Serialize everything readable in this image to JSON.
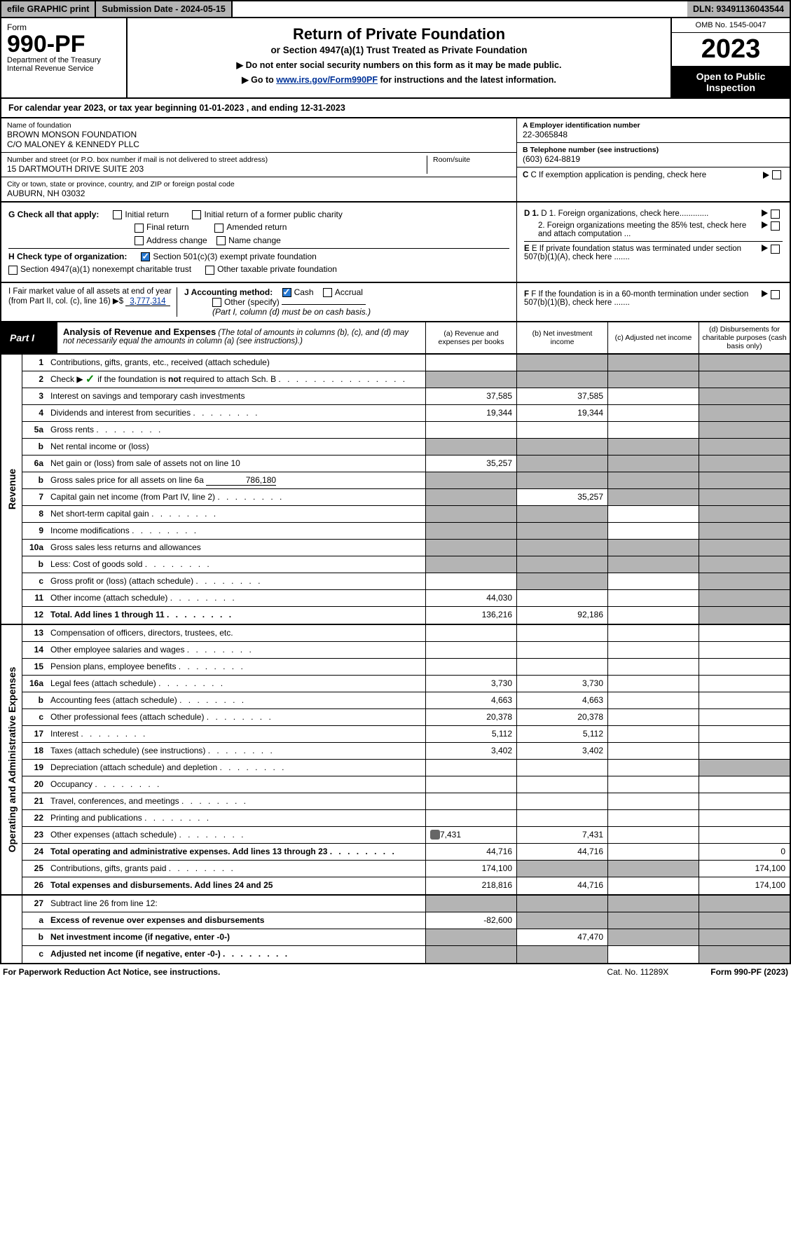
{
  "topbar": {
    "efile": "efile GRAPHIC print",
    "subdate": "Submission Date - 2024-05-15",
    "dln": "DLN: 93491136043544"
  },
  "header": {
    "form": "Form",
    "pf": "990-PF",
    "dept": "Department of the Treasury",
    "irs": "Internal Revenue Service",
    "title": "Return of Private Foundation",
    "subtitle": "or Section 4947(a)(1) Trust Treated as Private Foundation",
    "note1": "▶ Do not enter social security numbers on this form as it may be made public.",
    "note2_pre": "▶ Go to ",
    "note2_link": "www.irs.gov/Form990PF",
    "note2_post": " for instructions and the latest information.",
    "omb": "OMB No. 1545-0047",
    "year": "2023",
    "open": "Open to Public Inspection"
  },
  "calendar": "For calendar year 2023, or tax year beginning 01-01-2023                       , and ending 12-31-2023",
  "entity": {
    "name_lbl": "Name of foundation",
    "name": "BROWN MONSON FOUNDATION\nC/O MALONEY & KENNEDY PLLC",
    "addr_lbl": "Number and street (or P.O. box number if mail is not delivered to street address)",
    "addr": "15 DARTMOUTH DRIVE SUITE 203",
    "room_lbl": "Room/suite",
    "city_lbl": "City or town, state or province, country, and ZIP or foreign postal code",
    "city": "AUBURN, NH  03032",
    "ein_lbl": "A Employer identification number",
    "ein": "22-3065848",
    "tel_lbl": "B Telephone number (see instructions)",
    "tel": "(603) 624-8819",
    "c_lbl": "C If exemption application is pending, check here",
    "d1": "D 1. Foreign organizations, check here.............",
    "d2": "2. Foreign organizations meeting the 85% test, check here and attach computation ...",
    "e_lbl": "E  If private foundation status was terminated under section 507(b)(1)(A), check here .......",
    "f_lbl": "F  If the foundation is in a 60-month termination under section 507(b)(1)(B), check here ......."
  },
  "g": {
    "lbl": "G Check all that apply:",
    "opts": [
      "Initial return",
      "Final return",
      "Address change",
      "Initial return of a former public charity",
      "Amended return",
      "Name change"
    ]
  },
  "h": {
    "lbl": "H Check type of organization:",
    "o1": "Section 501(c)(3) exempt private foundation",
    "o2": "Section 4947(a)(1) nonexempt charitable trust",
    "o3": "Other taxable private foundation"
  },
  "i": {
    "lbl": "I Fair market value of all assets at end of year (from Part II, col. (c), line 16) ▶$",
    "val": "3,777,314"
  },
  "j": {
    "lbl": "J Accounting method:",
    "cash": "Cash",
    "accrual": "Accrual",
    "other": "Other (specify)",
    "note": "(Part I, column (d) must be on cash basis.)"
  },
  "part1": {
    "lbl": "Part I",
    "title": "Analysis of Revenue and Expenses",
    "note": "(The total of amounts in columns (b), (c), and (d) may not necessarily equal the amounts in column (a) (see instructions).)",
    "cols": {
      "a": "(a)  Revenue and expenses per books",
      "b": "(b)  Net investment income",
      "c": "(c)  Adjusted net income",
      "d": "(d)  Disbursements for charitable purposes (cash basis only)"
    }
  },
  "sections": {
    "revenue": "Revenue",
    "opex": "Operating and Administrative Expenses"
  },
  "rows": {
    "1": {
      "n": "1",
      "d": "Contributions, gifts, grants, etc., received (attach schedule)"
    },
    "2": {
      "n": "2",
      "d": "Check ▶        if the foundation is not required to attach Sch. B",
      "dots": true,
      "chk": true
    },
    "3": {
      "n": "3",
      "d": "Interest on savings and temporary cash investments",
      "a": "37,585",
      "b": "37,585"
    },
    "4": {
      "n": "4",
      "d": "Dividends and interest from securities",
      "dots": true,
      "a": "19,344",
      "b": "19,344"
    },
    "5a": {
      "n": "5a",
      "d": "Gross rents",
      "dots": true
    },
    "5b": {
      "n": "b",
      "d": "Net rental income or (loss)"
    },
    "6a": {
      "n": "6a",
      "d": "Net gain or (loss) from sale of assets not on line 10",
      "a": "35,257"
    },
    "6b": {
      "n": "b",
      "d": "Gross sales price for all assets on line 6a",
      "val": "786,180"
    },
    "7": {
      "n": "7",
      "d": "Capital gain net income (from Part IV, line 2)",
      "dots": true,
      "b": "35,257"
    },
    "8": {
      "n": "8",
      "d": "Net short-term capital gain",
      "dots": true
    },
    "9": {
      "n": "9",
      "d": "Income modifications",
      "dots": true
    },
    "10a": {
      "n": "10a",
      "d": "Gross sales less returns and allowances"
    },
    "10b": {
      "n": "b",
      "d": "Less: Cost of goods sold",
      "dots": true
    },
    "10c": {
      "n": "c",
      "d": "Gross profit or (loss) (attach schedule)",
      "dots": true
    },
    "11": {
      "n": "11",
      "d": "Other income (attach schedule)",
      "dots": true,
      "a": "44,030"
    },
    "12": {
      "n": "12",
      "d": "Total. Add lines 1 through 11",
      "dots": true,
      "a": "136,216",
      "b": "92,186",
      "bold": true
    },
    "13": {
      "n": "13",
      "d": "Compensation of officers, directors, trustees, etc."
    },
    "14": {
      "n": "14",
      "d": "Other employee salaries and wages",
      "dots": true
    },
    "15": {
      "n": "15",
      "d": "Pension plans, employee benefits",
      "dots": true
    },
    "16a": {
      "n": "16a",
      "d": "Legal fees (attach schedule)",
      "dots": true,
      "a": "3,730",
      "b": "3,730"
    },
    "16b": {
      "n": "b",
      "d": "Accounting fees (attach schedule)",
      "dots": true,
      "a": "4,663",
      "b": "4,663"
    },
    "16c": {
      "n": "c",
      "d": "Other professional fees (attach schedule)",
      "dots": true,
      "a": "20,378",
      "b": "20,378"
    },
    "17": {
      "n": "17",
      "d": "Interest",
      "dots": true,
      "a": "5,112",
      "b": "5,112"
    },
    "18": {
      "n": "18",
      "d": "Taxes (attach schedule) (see instructions)",
      "dots": true,
      "a": "3,402",
      "b": "3,402"
    },
    "19": {
      "n": "19",
      "d": "Depreciation (attach schedule) and depletion",
      "dots": true
    },
    "20": {
      "n": "20",
      "d": "Occupancy",
      "dots": true
    },
    "21": {
      "n": "21",
      "d": "Travel, conferences, and meetings",
      "dots": true
    },
    "22": {
      "n": "22",
      "d": "Printing and publications",
      "dots": true
    },
    "23": {
      "n": "23",
      "d": "Other expenses (attach schedule)",
      "dots": true,
      "a": "7,431",
      "b": "7,431",
      "icon": true
    },
    "24": {
      "n": "24",
      "d": "Total operating and administrative expenses. Add lines 13 through 23",
      "dots": true,
      "a": "44,716",
      "b": "44,716",
      "dd": "0",
      "bold": true
    },
    "25": {
      "n": "25",
      "d": "Contributions, gifts, grants paid",
      "dots": true,
      "a": "174,100",
      "dd": "174,100"
    },
    "26": {
      "n": "26",
      "d": "Total expenses and disbursements. Add lines 24 and 25",
      "a": "218,816",
      "b": "44,716",
      "dd": "174,100",
      "bold": true
    },
    "27": {
      "n": "27",
      "d": "Subtract line 26 from line 12:"
    },
    "27a": {
      "n": "a",
      "d": "Excess of revenue over expenses and disbursements",
      "a": "-82,600",
      "bold": true
    },
    "27b": {
      "n": "b",
      "d": "Net investment income (if negative, enter -0-)",
      "b": "47,470",
      "bold": true
    },
    "27c": {
      "n": "c",
      "d": "Adjusted net income (if negative, enter -0-)",
      "dots": true,
      "bold": true
    }
  },
  "footer": {
    "left": "For Paperwork Reduction Act Notice, see instructions.",
    "mid": "Cat. No. 11289X",
    "right": "Form 990-PF (2023)"
  },
  "colors": {
    "shade": "#b4b4b4",
    "link": "#003399",
    "check": "#2979d1",
    "green": "#0a8a0a"
  }
}
